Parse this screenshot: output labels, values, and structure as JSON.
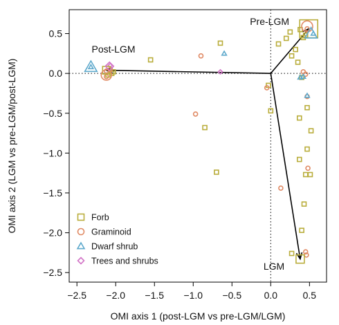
{
  "chart_data": {
    "type": "scatter",
    "xlabel": "OMI axis 1 (post-LGM vs pre-LGM/LGM)",
    "ylabel": "OMI axis 2 (LGM vs pre-LGM/post-LGM)",
    "xlim": [
      -2.6,
      0.72
    ],
    "ylim": [
      -2.62,
      0.8
    ],
    "x_ticks": [
      -2.5,
      -2.0,
      -1.5,
      -1.0,
      -0.5,
      0.0,
      0.5
    ],
    "y_ticks": [
      -2.5,
      -2.0,
      -1.5,
      -1.0,
      -0.5,
      0.0,
      0.5
    ],
    "x_tick_labels": [
      "−2.5",
      "−2.0",
      "−1.5",
      "−1.0",
      "−0.5",
      "0.0",
      "0.5"
    ],
    "y_tick_labels": [
      "−2.5",
      "−2.0",
      "−1.5",
      "−1.0",
      "−0.5",
      "0.0",
      "0.5"
    ],
    "reference_lines": {
      "x": 0,
      "y": 0,
      "style": "dotted"
    },
    "legend_position": "bottom-left",
    "vectors": [
      {
        "label": "Pre-LGM",
        "x": 0.49,
        "y": 0.56
      },
      {
        "label": "Post-LGM",
        "x": -2.12,
        "y": 0.04
      },
      {
        "label": "LGM",
        "x": 0.38,
        "y": -2.33
      }
    ],
    "series": [
      {
        "name": "Forb",
        "marker": "square",
        "color": "#b9ad3b",
        "points": [
          {
            "x": -2.1,
            "y": -0.02
          },
          {
            "x": -2.05,
            "y": 0.0
          },
          {
            "x": -2.03,
            "y": 0.02
          },
          {
            "x": -1.55,
            "y": 0.17
          },
          {
            "x": -0.65,
            "y": 0.38
          },
          {
            "x": -0.85,
            "y": -0.68
          },
          {
            "x": -0.7,
            "y": -1.24
          },
          {
            "x": -0.03,
            "y": -0.15
          },
          {
            "x": 0.0,
            "y": -0.47
          },
          {
            "x": 0.1,
            "y": 0.37
          },
          {
            "x": 0.2,
            "y": 0.44
          },
          {
            "x": 0.25,
            "y": 0.52
          },
          {
            "x": 0.27,
            "y": 0.22
          },
          {
            "x": 0.32,
            "y": 0.3
          },
          {
            "x": 0.35,
            "y": 0.14
          },
          {
            "x": 0.38,
            "y": 0.55
          },
          {
            "x": 0.42,
            "y": 0.45
          },
          {
            "x": 0.45,
            "y": 0.48
          },
          {
            "x": 0.37,
            "y": -0.56
          },
          {
            "x": 0.4,
            "y": -0.05
          },
          {
            "x": 0.47,
            "y": -0.43
          },
          {
            "x": 0.47,
            "y": -0.95
          },
          {
            "x": 0.52,
            "y": -0.72
          },
          {
            "x": 0.37,
            "y": -1.08
          },
          {
            "x": 0.45,
            "y": -1.27
          },
          {
            "x": 0.51,
            "y": -1.27
          },
          {
            "x": 0.43,
            "y": -1.64
          },
          {
            "x": 0.4,
            "y": -1.97
          },
          {
            "x": 0.27,
            "y": -2.26
          }
        ]
      },
      {
        "name": "Graminoid",
        "marker": "circle",
        "color": "#e08a64",
        "points": [
          {
            "x": -2.12,
            "y": 0.03
          },
          {
            "x": -2.12,
            "y": -0.04
          },
          {
            "x": -2.07,
            "y": 0.05
          },
          {
            "x": -0.9,
            "y": 0.22
          },
          {
            "x": -0.97,
            "y": -0.51
          },
          {
            "x": -0.05,
            "y": -0.18
          },
          {
            "x": 0.47,
            "y": 0.56
          },
          {
            "x": 0.42,
            "y": 0.02
          },
          {
            "x": 0.45,
            "y": -0.01
          },
          {
            "x": 0.47,
            "y": -0.29
          },
          {
            "x": 0.48,
            "y": -1.19
          },
          {
            "x": 0.13,
            "y": -1.44
          },
          {
            "x": 0.46,
            "y": -2.28
          },
          {
            "x": 0.45,
            "y": -2.24
          }
        ]
      },
      {
        "name": "Dwarf shrub",
        "marker": "triangle",
        "color": "#5ea9cc",
        "points": [
          {
            "x": -2.32,
            "y": 0.08
          },
          {
            "x": -0.6,
            "y": 0.25
          },
          {
            "x": 0.38,
            "y": -0.05
          },
          {
            "x": 0.42,
            "y": -0.04
          },
          {
            "x": 0.47,
            "y": -0.28
          },
          {
            "x": 0.55,
            "y": 0.5
          }
        ]
      },
      {
        "name": "Trees and shrubs",
        "marker": "diamond",
        "color": "#d274c7",
        "points": [
          {
            "x": -2.07,
            "y": 0.1
          },
          {
            "x": -0.65,
            "y": 0.02
          }
        ]
      }
    ],
    "large_markers": [
      {
        "series": "Forb",
        "marker": "square",
        "x": 0.49,
        "y": 0.56,
        "size": 26
      },
      {
        "series": "Forb",
        "marker": "square",
        "x": 0.38,
        "y": -2.33,
        "size": 12
      },
      {
        "series": "Forb",
        "marker": "square",
        "x": -2.12,
        "y": 0.04,
        "size": 11
      },
      {
        "series": "Graminoid",
        "marker": "circle",
        "x": 0.47,
        "y": 0.59,
        "size": 16
      },
      {
        "series": "Graminoid",
        "marker": "circle",
        "x": -2.12,
        "y": -0.02,
        "size": 15
      },
      {
        "series": "Dwarf shrub",
        "marker": "triangle",
        "x": 0.52,
        "y": 0.5,
        "size": 16
      },
      {
        "series": "Dwarf shrub",
        "marker": "triangle",
        "x": -2.32,
        "y": 0.08,
        "size": 16
      },
      {
        "series": "Trees and shrubs",
        "marker": "diamond",
        "x": -2.08,
        "y": 0.09,
        "size": 12
      }
    ]
  }
}
